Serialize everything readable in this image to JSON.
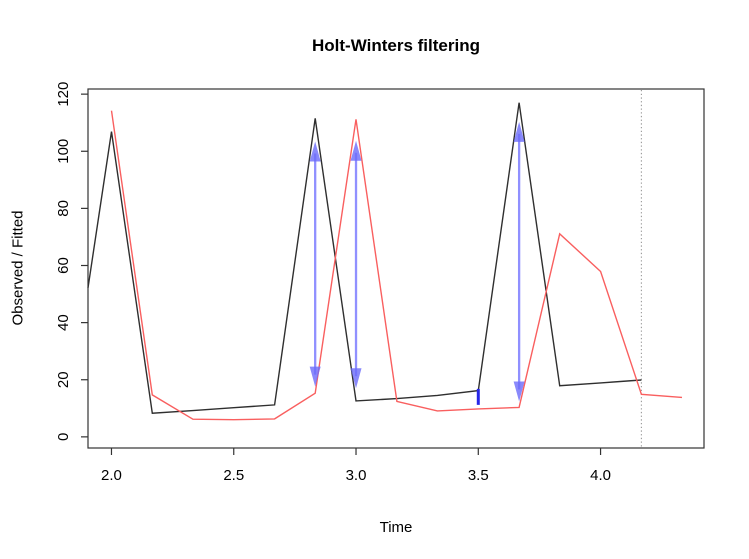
{
  "title": "Holt-Winters filtering",
  "chart_data": {
    "type": "line",
    "title": "Holt-Winters filtering",
    "xlabel": "Time",
    "ylabel": "Observed / Fitted",
    "xlim": [
      1.904,
      4.423
    ],
    "ylim": [
      -3.9,
      121.8
    ],
    "x_ticks": [
      2.0,
      2.5,
      3.0,
      3.5,
      4.0
    ],
    "x_tick_labels": [
      "2.0",
      "2.5",
      "3.0",
      "3.5",
      "4.0"
    ],
    "y_ticks": [
      0,
      20,
      40,
      60,
      80,
      100,
      120
    ],
    "y_tick_labels": [
      "0",
      "20",
      "40",
      "60",
      "80",
      "100",
      "120"
    ],
    "grid": "off",
    "legend": "none",
    "series": [
      {
        "name": "observed",
        "color": "#2f2f2f",
        "points": [
          [
            1.904,
            52.2
          ],
          [
            2.0,
            106.9
          ],
          [
            2.167,
            8.3
          ],
          [
            2.333,
            9.2
          ],
          [
            2.5,
            10.2
          ],
          [
            2.667,
            11.2
          ],
          [
            2.833,
            111.5
          ],
          [
            3.0,
            12.6
          ],
          [
            3.167,
            13.4
          ],
          [
            3.333,
            14.5
          ],
          [
            3.5,
            16.2
          ],
          [
            3.667,
            117.0
          ],
          [
            3.833,
            17.9
          ],
          [
            4.0,
            18.9
          ],
          [
            4.167,
            19.9
          ]
        ]
      },
      {
        "name": "fitted",
        "color": "#f95f5f",
        "points": [
          [
            2.0,
            114.2
          ],
          [
            2.167,
            14.7
          ],
          [
            2.333,
            6.2
          ],
          [
            2.5,
            6.0
          ],
          [
            2.667,
            6.3
          ],
          [
            2.833,
            15.3
          ],
          [
            3.0,
            111.2
          ],
          [
            3.167,
            12.4
          ],
          [
            3.333,
            9.1
          ],
          [
            3.5,
            9.8
          ],
          [
            3.667,
            10.3
          ],
          [
            3.833,
            71.1
          ],
          [
            4.0,
            57.9
          ],
          [
            4.167,
            14.9
          ],
          [
            4.333,
            13.8
          ]
        ]
      }
    ],
    "annotations": {
      "error_arrows": [
        {
          "t": 2.833,
          "v_top": 103.4,
          "v_bottom": 17.6
        },
        {
          "t": 3.0,
          "v_top": 103.7,
          "v_bottom": 17.0
        },
        {
          "t": 3.667,
          "v_top": 110.3,
          "v_bottom": 12.4
        }
      ],
      "residual_marker": {
        "t": 3.5,
        "v_top": 16.8,
        "v_bottom": 11.2
      },
      "forecast_vline": {
        "t": 4.167,
        "style": "dotted"
      }
    },
    "colors": {
      "observed_line": "#2f2f2f",
      "fitted_line": "#f95f5f",
      "arrow_shaft": "rgba(124,124,255,0.85)",
      "arrow_head": "rgba(108,108,250,0.80)",
      "residual_marker": "#2727e8",
      "forecast_vline": "#999999",
      "box": "#333333",
      "tick_text": "#000000"
    }
  }
}
